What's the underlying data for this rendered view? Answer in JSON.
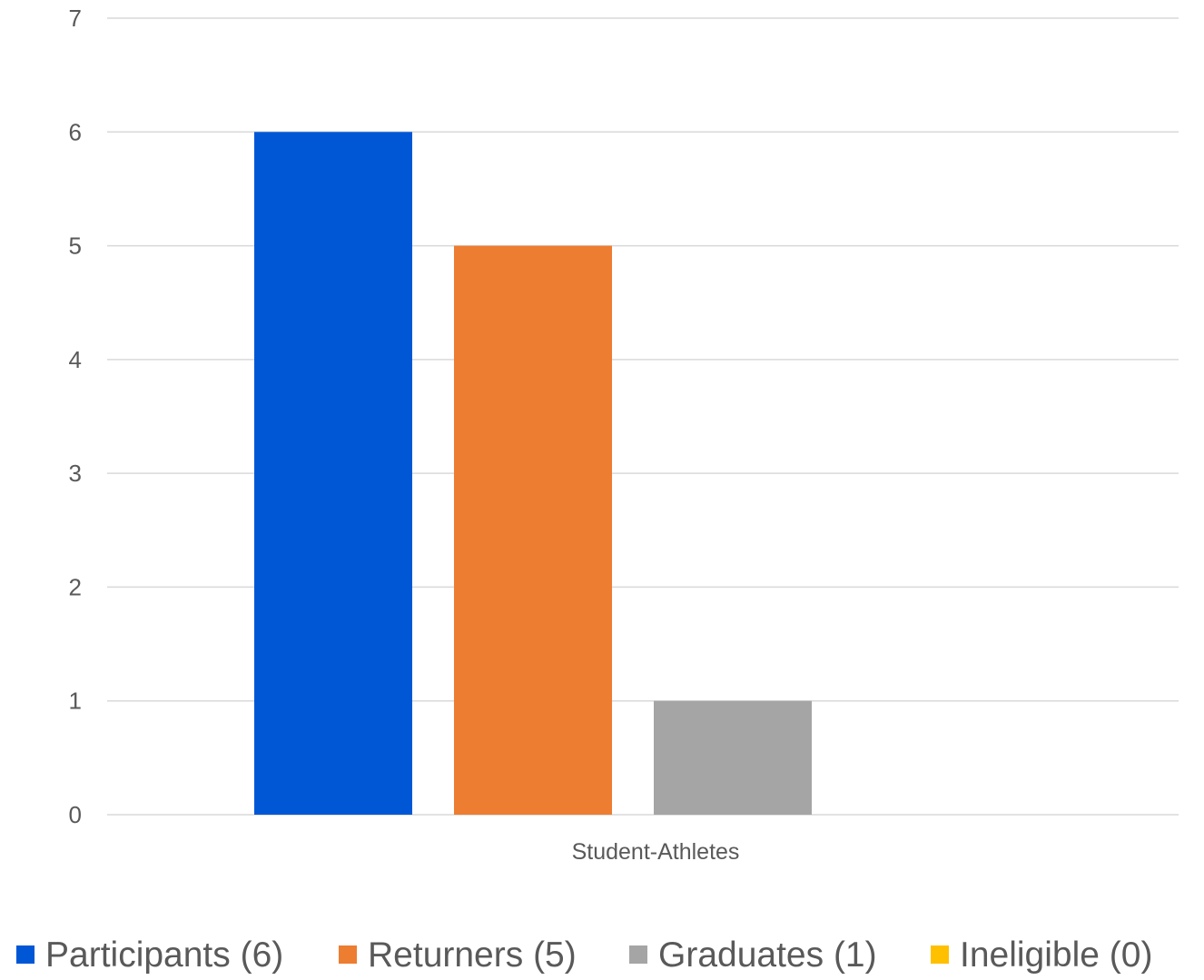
{
  "chart_data": {
    "type": "bar",
    "categories": [
      "Student-Athletes"
    ],
    "series": [
      {
        "name": "Participants (6)",
        "values": [
          6
        ],
        "color": "#0057D6"
      },
      {
        "name": "Returners (5)",
        "values": [
          5
        ],
        "color": "#ED7D31"
      },
      {
        "name": "Graduates (1)",
        "values": [
          1
        ],
        "color": "#A5A5A5"
      },
      {
        "name": "Ineligible (0)",
        "values": [
          0
        ],
        "color": "#FFC000"
      }
    ],
    "title": "",
    "xlabel": "",
    "ylabel": "",
    "ylim": [
      0,
      7
    ],
    "yticks": [
      0,
      1,
      2,
      3,
      4,
      5,
      6,
      7
    ],
    "grid": true,
    "legend_position": "bottom",
    "colors": {
      "gridline": "#D9D9D9",
      "axis_text": "#595959",
      "legend_text": "#595959"
    }
  }
}
